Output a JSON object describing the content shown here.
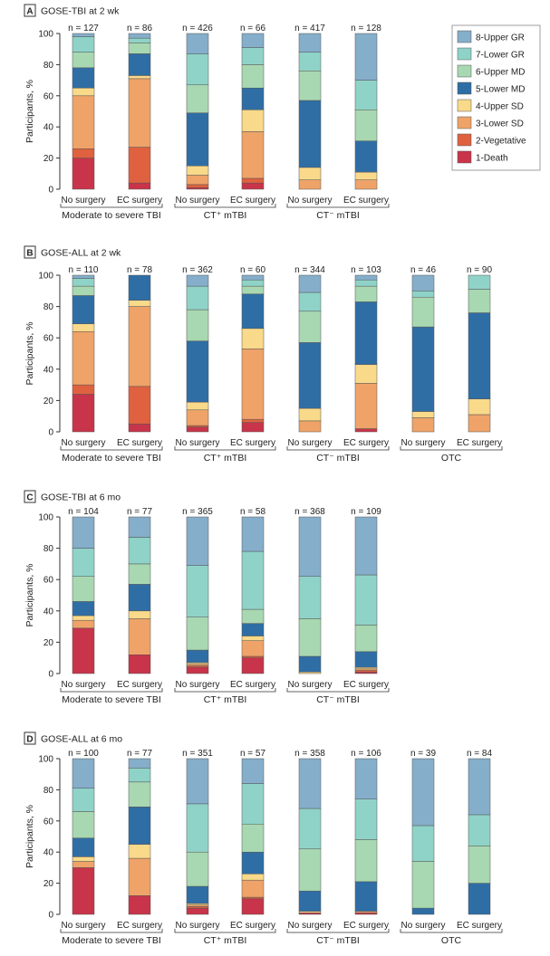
{
  "categories_legend": [
    {
      "label": "8-Upper GR",
      "color": "#85AECB"
    },
    {
      "label": "7-Lower GR",
      "color": "#8FD3C8"
    },
    {
      "label": "6-Upper MD",
      "color": "#A8D8B1"
    },
    {
      "label": "5-Lower MD",
      "color": "#2F6EA5"
    },
    {
      "label": "4-Upper SD",
      "color": "#F9D98A"
    },
    {
      "label": "3-Lower SD",
      "color": "#EFA368"
    },
    {
      "label": "2-Vegetative",
      "color": "#E0613F"
    },
    {
      "label": "1-Death",
      "color": "#C8344A"
    }
  ],
  "chart_data": [
    {
      "type": "bar",
      "panel": "A",
      "title": "GOSE-TBI at 2 wk",
      "ylabel": "Participants, %",
      "ylim": [
        0,
        100
      ],
      "yticks": [
        "0",
        "20",
        "40",
        "60",
        "80",
        "100"
      ],
      "legend": "right",
      "series_order_bottom_to_top": [
        "1-Death",
        "2-Vegetative",
        "3-Lower SD",
        "4-Upper SD",
        "5-Lower MD",
        "6-Upper MD",
        "7-Lower GR",
        "8-Upper GR"
      ],
      "groups": [
        "Moderate to severe TBI",
        "CT⁺ mTBI",
        "CT⁻ mTBI"
      ],
      "bars": [
        {
          "label": "No surgery",
          "n": "n = 127",
          "values": [
            20,
            6,
            34,
            5,
            13,
            10,
            10,
            2
          ]
        },
        {
          "label": "EC surgery",
          "n": "n = 86",
          "values": [
            4,
            23,
            44,
            2,
            14,
            7,
            3,
            3
          ]
        },
        {
          "label": "No surgery",
          "n": "n = 426",
          "values": [
            1,
            2,
            6,
            6,
            34,
            18,
            20,
            13
          ]
        },
        {
          "label": "EC surgery",
          "n": "n = 66",
          "values": [
            4,
            3,
            30,
            14,
            14,
            15,
            11,
            9
          ]
        },
        {
          "label": "No surgery",
          "n": "n = 417",
          "values": [
            0,
            0,
            6,
            8,
            43,
            19,
            12,
            12
          ]
        },
        {
          "label": "EC surgery",
          "n": "n = 128",
          "values": [
            0,
            0,
            6,
            5,
            20,
            20,
            19,
            30
          ]
        }
      ]
    },
    {
      "type": "bar",
      "panel": "B",
      "title": "GOSE-ALL at 2 wk",
      "ylabel": "Participants, %",
      "ylim": [
        0,
        100
      ],
      "yticks": [
        "0",
        "20",
        "40",
        "60",
        "80",
        "100"
      ],
      "groups": [
        "Moderate to severe TBI",
        "CT⁺ mTBI",
        "CT⁻ mTBI",
        "OTC"
      ],
      "bars": [
        {
          "label": "No surgery",
          "n": "n = 110",
          "values": [
            24,
            6,
            34,
            5,
            18,
            6,
            5,
            2
          ]
        },
        {
          "label": "EC surgery",
          "n": "n = 78",
          "values": [
            5,
            24,
            51,
            4,
            16,
            0,
            0,
            0
          ]
        },
        {
          "label": "No surgery",
          "n": "n = 362",
          "values": [
            3,
            1,
            10,
            5,
            39,
            20,
            15,
            7
          ]
        },
        {
          "label": "EC surgery",
          "n": "n = 60",
          "values": [
            6,
            2,
            45,
            13,
            22,
            5,
            4,
            3
          ]
        },
        {
          "label": "No surgery",
          "n": "n = 344",
          "values": [
            0,
            0,
            7,
            8,
            42,
            20,
            12,
            11
          ]
        },
        {
          "label": "EC surgery",
          "n": "n = 103",
          "values": [
            2,
            0,
            29,
            12,
            40,
            10,
            4,
            3
          ]
        },
        {
          "label": "No surgery",
          "n": "n = 46",
          "values": [
            0,
            0,
            9,
            4,
            54,
            19,
            4,
            10
          ]
        },
        {
          "label": "EC surgery",
          "n": "n = 90",
          "values": [
            0,
            0,
            11,
            10,
            55,
            15,
            9,
            0
          ]
        }
      ]
    },
    {
      "type": "bar",
      "panel": "C",
      "title": "GOSE-TBI at 6 mo",
      "ylabel": "Participants, %",
      "ylim": [
        0,
        100
      ],
      "yticks": [
        "0",
        "20",
        "40",
        "60",
        "80",
        "100"
      ],
      "groups": [
        "Moderate to severe TBI",
        "CT⁺ mTBI",
        "CT⁻ mTBI"
      ],
      "bars": [
        {
          "label": "No surgery",
          "n": "n = 104",
          "values": [
            29,
            0,
            5,
            3,
            9,
            16,
            18,
            20
          ]
        },
        {
          "label": "EC surgery",
          "n": "n = 77",
          "values": [
            12,
            0,
            23,
            5,
            17,
            13,
            17,
            13
          ]
        },
        {
          "label": "No surgery",
          "n": "n = 365",
          "values": [
            4,
            1,
            1,
            1,
            8,
            21,
            33,
            31
          ]
        },
        {
          "label": "EC surgery",
          "n": "n = 58",
          "values": [
            10,
            1,
            10,
            3,
            8,
            9,
            37,
            22
          ]
        },
        {
          "label": "No surgery",
          "n": "n = 368",
          "values": [
            0,
            0,
            0,
            1,
            10,
            24,
            27,
            38
          ]
        },
        {
          "label": "EC surgery",
          "n": "n = 109",
          "values": [
            1,
            1,
            1,
            1,
            10,
            17,
            32,
            37
          ]
        }
      ]
    },
    {
      "type": "bar",
      "panel": "D",
      "title": "GOSE-ALL at 6 mo",
      "ylabel": "Participants, %",
      "ylim": [
        0,
        100
      ],
      "yticks": [
        "0",
        "20",
        "40",
        "60",
        "80",
        "100"
      ],
      "groups": [
        "Moderate to severe TBI",
        "CT⁺ mTBI",
        "CT⁻ mTBI",
        "OTC"
      ],
      "bars": [
        {
          "label": "No surgery",
          "n": "n = 100",
          "values": [
            30,
            0,
            4,
            3,
            12,
            17,
            15,
            19
          ]
        },
        {
          "label": "EC surgery",
          "n": "n = 77",
          "values": [
            12,
            0,
            24,
            9,
            24,
            16,
            9,
            6
          ]
        },
        {
          "label": "No surgery",
          "n": "n = 351",
          "values": [
            4,
            1,
            1,
            1,
            11,
            22,
            31,
            29
          ]
        },
        {
          "label": "EC surgery",
          "n": "n = 57",
          "values": [
            10,
            1,
            11,
            4,
            14,
            18,
            26,
            16
          ]
        },
        {
          "label": "No surgery",
          "n": "n = 358",
          "values": [
            1,
            0,
            0,
            1,
            13,
            27,
            26,
            32
          ]
        },
        {
          "label": "EC surgery",
          "n": "n = 106",
          "values": [
            1,
            0,
            1,
            0,
            19,
            27,
            26,
            26
          ]
        },
        {
          "label": "No surgery",
          "n": "n = 39",
          "values": [
            0,
            0,
            0,
            0,
            4,
            30,
            23,
            43
          ]
        },
        {
          "label": "EC surgery",
          "n": "n = 84",
          "values": [
            0,
            0,
            0,
            0,
            20,
            24,
            20,
            36
          ]
        }
      ]
    }
  ]
}
